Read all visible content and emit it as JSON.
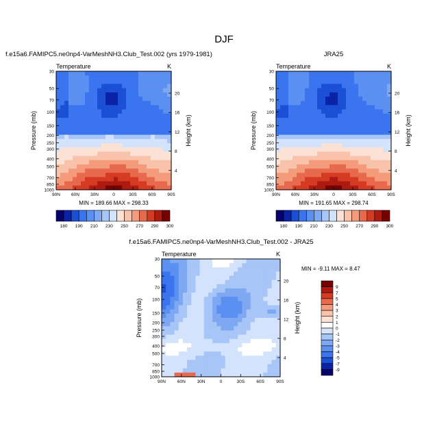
{
  "figure_title": "DJF",
  "chart_data": [
    {
      "type": "heatmap",
      "panel": "model",
      "title": "f.e15a6.FAMIPC5.ne0np4-VarMeshNH3.Club_Test.002 (yrs 1979-1981)",
      "left_label": "Temperature",
      "right_label": "K",
      "ylabel": "Pressure (mb)",
      "y2label": "Height (km)",
      "x_ticks": [
        "90N",
        "60N",
        "30N",
        "0",
        "30S",
        "60S",
        "90S"
      ],
      "y_ticks": [
        "30",
        "50",
        "70",
        "100",
        "150",
        "200",
        "250",
        "300",
        "400",
        "500",
        "700",
        "850",
        "1000"
      ],
      "y2_ticks": [
        "20",
        "16",
        "12",
        "8",
        "4"
      ],
      "stats": "MIN = 189.66  MAX = 298.33",
      "min": 189.66,
      "max": 298.33,
      "colorbar_ticks": [
        "180",
        "190",
        "210",
        "230",
        "250",
        "270",
        "290",
        "300"
      ]
    },
    {
      "type": "heatmap",
      "panel": "obs",
      "title": "JRA25",
      "left_label": "Temperature",
      "right_label": "K",
      "ylabel": "Pressure (mb)",
      "y2label": "Height (km)",
      "x_ticks": [
        "90N",
        "60N",
        "30N",
        "0",
        "30S",
        "60S",
        "90S"
      ],
      "y_ticks": [
        "30",
        "50",
        "70",
        "100",
        "150",
        "200",
        "250",
        "300",
        "400",
        "500",
        "700",
        "850",
        "1000"
      ],
      "y2_ticks": [
        "20",
        "16",
        "12",
        "8",
        "4"
      ],
      "stats": "MIN = 191.65  MAX = 298.74",
      "min": 191.65,
      "max": 298.74,
      "colorbar_ticks": [
        "180",
        "190",
        "210",
        "230",
        "250",
        "270",
        "290",
        "300"
      ]
    },
    {
      "type": "heatmap",
      "panel": "diff",
      "title": "f.e15a6.FAMIPC5.ne0np4-VarMeshNH3.Club_Test.002 - JRA25",
      "left_label": "Temperature",
      "right_label": "K",
      "ylabel": "Pressure (mb)",
      "y2label": "Height (km)",
      "x_ticks": [
        "90N",
        "60N",
        "30N",
        "0",
        "30S",
        "60S",
        "90S"
      ],
      "y_ticks": [
        "30",
        "50",
        "70",
        "100",
        "150",
        "200",
        "250",
        "300",
        "400",
        "500",
        "700",
        "850",
        "1000"
      ],
      "y2_ticks": [
        "20",
        "16",
        "12",
        "8",
        "4"
      ],
      "stats": "MIN = -9.11  MAX =  8.47",
      "min": -9.11,
      "max": 8.47,
      "colorbar_ticks": [
        "9",
        "7",
        "5",
        "4",
        "3",
        "2",
        "1",
        "0",
        "-1",
        "-2",
        "-3",
        "-4",
        "-5",
        "-7",
        "-9"
      ]
    }
  ],
  "colors": {
    "abs_palette": [
      "#08006b",
      "#0a22a6",
      "#1b4fd6",
      "#3a74ee",
      "#5b90f0",
      "#7ea8f2",
      "#a7c5f7",
      "#d2e3fb",
      "#fbe2d4",
      "#f8c3aa",
      "#f39b7a",
      "#e86a4e",
      "#d43b22",
      "#ad1a10",
      "#770000"
    ],
    "diff_palette": [
      "#770000",
      "#ad1a10",
      "#d43b22",
      "#e86a4e",
      "#f39b7a",
      "#f8c3aa",
      "#fbe2d4",
      "#ffffff",
      "#d2e3fb",
      "#a7c5f7",
      "#7ea8f2",
      "#5b90f0",
      "#3a74ee",
      "#1b4fd6",
      "#0a22a6",
      "#08006b"
    ]
  }
}
